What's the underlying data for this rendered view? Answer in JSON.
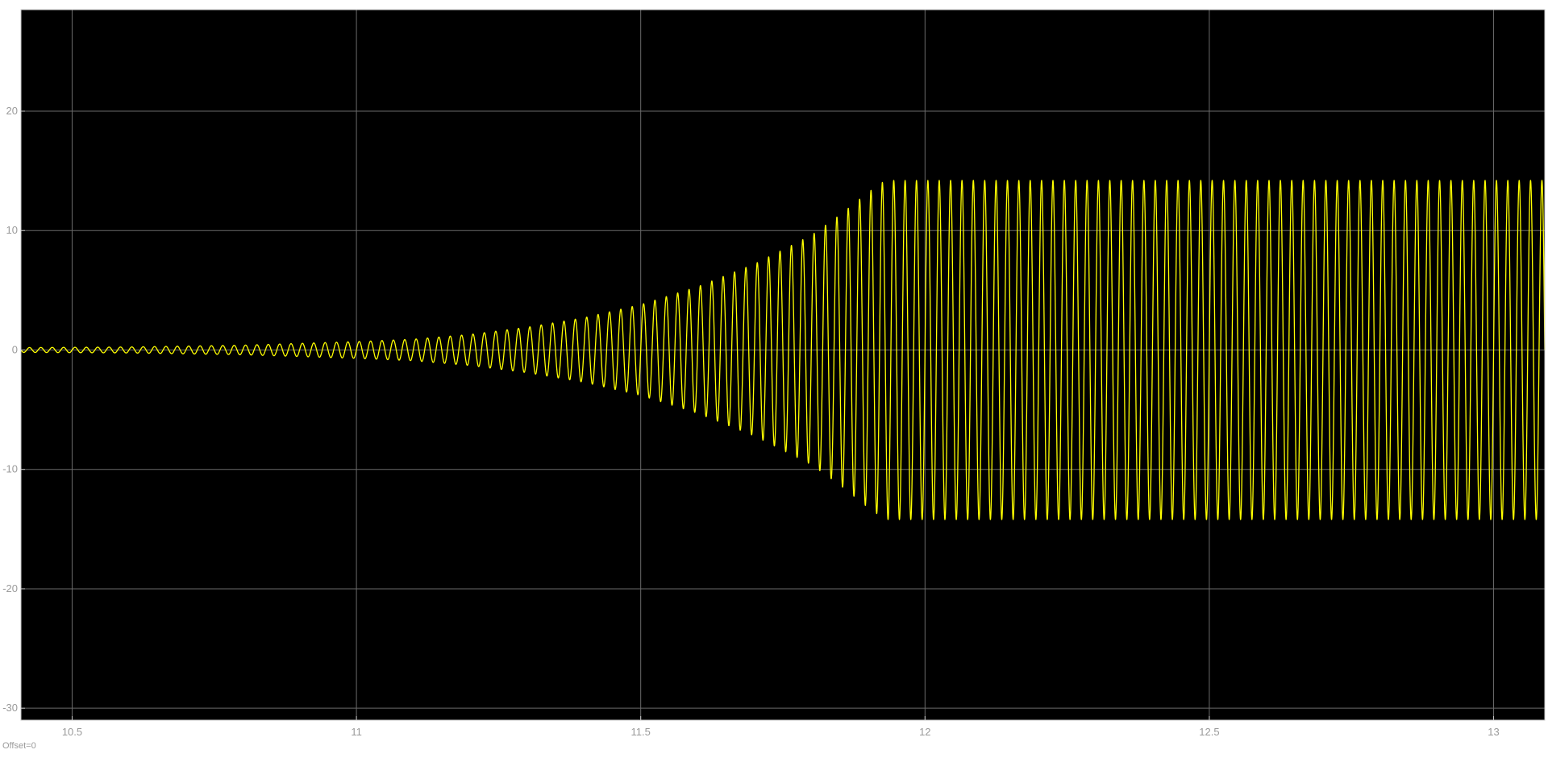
{
  "window": {
    "offset_label": "Offset=0"
  },
  "chart_data": {
    "type": "line",
    "title": "",
    "xlabel": "",
    "ylabel": "",
    "xlim": [
      10.41,
      13.09
    ],
    "ylim": [
      -31,
      28.5
    ],
    "x_ticks": [
      10.5,
      11,
      11.5,
      12,
      12.5,
      13
    ],
    "x_tick_labels": [
      "10.5",
      "11",
      "11.5",
      "12",
      "12.5",
      "13"
    ],
    "y_ticks": [
      20,
      10,
      0,
      -10,
      -20,
      -30
    ],
    "y_tick_labels": [
      "20",
      "10",
      "0",
      "-10",
      "-20",
      "-30"
    ],
    "grid": true,
    "colors": {
      "plot_background": "#000000",
      "figure_background": "#ffffff",
      "grid": "#6a6a6a",
      "axes": "#c8c8c8",
      "tick_label": "#9a9a9a",
      "series": "#ffff00"
    },
    "series": [
      {
        "signal": "sinusoid",
        "frequency_hz": 50,
        "envelope_time": [
          10.41,
          10.6,
          10.8,
          11.0,
          11.1,
          11.2,
          11.3,
          11.4,
          11.5,
          11.6,
          11.7,
          11.8,
          11.85,
          11.9,
          11.93,
          13.09
        ],
        "envelope_amplitude": [
          0.2,
          0.25,
          0.4,
          0.7,
          0.9,
          1.3,
          1.9,
          2.7,
          3.8,
          5.3,
          7.2,
          9.6,
          11.3,
          13.2,
          14.2,
          14.2
        ]
      }
    ]
  }
}
